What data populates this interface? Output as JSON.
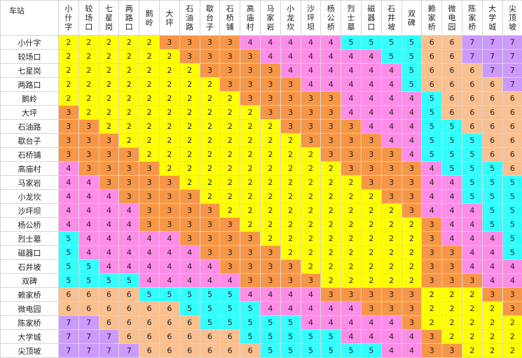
{
  "corner_label": "车站",
  "stations": [
    "小什字",
    "较场口",
    "七星岗",
    "两路口",
    "鹅岭",
    "大坪",
    "石油路",
    "歇台子",
    "石桥铺",
    "高庙村",
    "马家岩",
    "小龙坎",
    "沙坪坝",
    "杨公桥",
    "烈士墓",
    "磁器口",
    "石井坡",
    "双碑",
    "赖家桥",
    "微电园",
    "陈家桥",
    "大学城",
    "尖顶坡"
  ],
  "fares": [
    [
      2,
      2,
      2,
      2,
      2,
      3,
      3,
      3,
      3,
      4,
      4,
      4,
      4,
      4,
      5,
      5,
      5,
      5,
      6,
      6,
      7,
      7,
      7
    ],
    [
      2,
      2,
      2,
      2,
      2,
      2,
      3,
      3,
      3,
      3,
      4,
      4,
      4,
      4,
      4,
      4,
      5,
      5,
      6,
      6,
      7,
      7,
      7
    ],
    [
      2,
      2,
      2,
      2,
      2,
      2,
      2,
      3,
      3,
      3,
      3,
      4,
      4,
      4,
      4,
      4,
      4,
      5,
      6,
      6,
      6,
      7,
      7
    ],
    [
      2,
      2,
      2,
      2,
      2,
      2,
      2,
      2,
      3,
      3,
      3,
      3,
      4,
      4,
      4,
      4,
      4,
      5,
      6,
      6,
      6,
      6,
      7
    ],
    [
      2,
      2,
      2,
      2,
      2,
      2,
      2,
      2,
      2,
      3,
      3,
      3,
      3,
      3,
      4,
      4,
      4,
      4,
      5,
      6,
      6,
      6,
      6
    ],
    [
      3,
      2,
      2,
      2,
      2,
      2,
      2,
      2,
      2,
      2,
      3,
      3,
      3,
      3,
      4,
      4,
      4,
      4,
      5,
      6,
      6,
      6,
      6
    ],
    [
      3,
      3,
      2,
      2,
      2,
      2,
      2,
      2,
      2,
      2,
      2,
      3,
      3,
      3,
      3,
      4,
      4,
      4,
      5,
      5,
      6,
      6,
      6
    ],
    [
      3,
      3,
      3,
      2,
      2,
      2,
      2,
      2,
      2,
      2,
      2,
      2,
      3,
      3,
      3,
      3,
      4,
      4,
      5,
      5,
      5,
      6,
      6
    ],
    [
      3,
      3,
      3,
      3,
      2,
      2,
      2,
      2,
      2,
      2,
      2,
      2,
      2,
      3,
      3,
      3,
      3,
      4,
      5,
      5,
      5,
      6,
      6
    ],
    [
      4,
      3,
      3,
      3,
      3,
      2,
      2,
      2,
      2,
      2,
      2,
      2,
      2,
      2,
      3,
      3,
      3,
      3,
      4,
      5,
      5,
      5,
      6
    ],
    [
      4,
      4,
      3,
      3,
      3,
      3,
      2,
      2,
      2,
      2,
      2,
      2,
      2,
      2,
      2,
      3,
      3,
      3,
      4,
      4,
      5,
      5,
      5
    ],
    [
      4,
      4,
      4,
      3,
      3,
      3,
      3,
      2,
      2,
      2,
      2,
      2,
      2,
      2,
      2,
      2,
      3,
      3,
      4,
      4,
      5,
      5,
      5
    ],
    [
      4,
      4,
      4,
      4,
      3,
      3,
      3,
      3,
      2,
      2,
      2,
      2,
      2,
      2,
      2,
      2,
      2,
      3,
      4,
      4,
      4,
      5,
      5
    ],
    [
      4,
      4,
      4,
      4,
      3,
      3,
      3,
      3,
      3,
      2,
      2,
      2,
      2,
      2,
      2,
      2,
      2,
      2,
      3,
      4,
      4,
      5,
      5
    ],
    [
      5,
      4,
      4,
      4,
      4,
      4,
      3,
      3,
      3,
      3,
      2,
      2,
      2,
      2,
      2,
      2,
      2,
      2,
      3,
      4,
      4,
      4,
      5
    ],
    [
      5,
      4,
      4,
      4,
      4,
      4,
      4,
      3,
      3,
      3,
      3,
      2,
      2,
      2,
      2,
      2,
      2,
      2,
      3,
      3,
      4,
      4,
      5
    ],
    [
      5,
      5,
      4,
      4,
      4,
      4,
      4,
      4,
      3,
      3,
      3,
      3,
      2,
      2,
      2,
      2,
      2,
      2,
      3,
      3,
      4,
      4,
      4
    ],
    [
      5,
      5,
      5,
      5,
      4,
      4,
      4,
      4,
      4,
      3,
      3,
      3,
      3,
      2,
      2,
      2,
      2,
      2,
      3,
      3,
      3,
      4,
      4
    ],
    [
      6,
      6,
      6,
      6,
      5,
      5,
      5,
      5,
      5,
      4,
      4,
      4,
      4,
      3,
      3,
      3,
      3,
      3,
      2,
      2,
      2,
      3,
      3
    ],
    [
      6,
      6,
      6,
      6,
      6,
      6,
      5,
      5,
      5,
      5,
      4,
      4,
      4,
      4,
      4,
      3,
      3,
      3,
      2,
      2,
      2,
      2,
      3
    ],
    [
      7,
      7,
      6,
      6,
      6,
      6,
      6,
      5,
      5,
      5,
      5,
      5,
      4,
      4,
      4,
      4,
      4,
      3,
      2,
      2,
      2,
      2,
      2
    ],
    [
      7,
      7,
      7,
      6,
      6,
      6,
      6,
      6,
      6,
      5,
      5,
      5,
      5,
      5,
      4,
      4,
      4,
      4,
      3,
      2,
      2,
      2,
      2
    ],
    [
      7,
      7,
      7,
      7,
      6,
      6,
      6,
      6,
      6,
      6,
      5,
      5,
      5,
      5,
      5,
      5,
      4,
      4,
      3,
      3,
      2,
      2,
      2
    ]
  ],
  "fare_colors": {
    "2": "#ffff00",
    "3": "#f79646",
    "4": "#ff8ce6",
    "5": "#33ffff",
    "6": "#fac090",
    "7": "#cc99ff"
  }
}
